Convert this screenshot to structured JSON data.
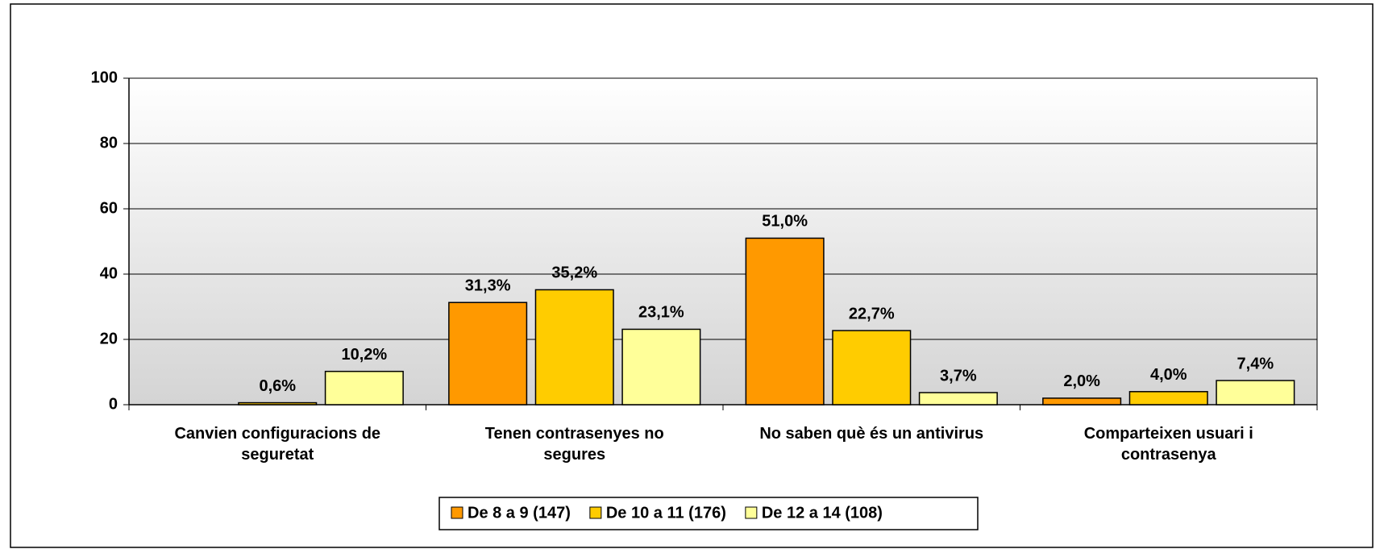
{
  "chart_data": {
    "type": "bar",
    "categories": [
      "Canvien configuracions de seguretat",
      "Tenen contrasenyes no segures",
      "No saben què és un antivirus",
      "Comparteixen usuari i contrasenya"
    ],
    "series": [
      {
        "name": "De 8 a 9 (147)",
        "color": "#ff9900",
        "values": [
          null,
          31.3,
          51.0,
          2.0
        ],
        "value_labels": [
          null,
          "31,3%",
          "51,0%",
          "2,0%"
        ]
      },
      {
        "name": "De 10 a 11 (176)",
        "color": "#ffcc00",
        "values": [
          0.6,
          35.2,
          22.7,
          4.0
        ],
        "value_labels": [
          "0,6%",
          "35,2%",
          "22,7%",
          "4,0%"
        ]
      },
      {
        "name": "De 12 a 14 (108)",
        "color": "#ffff99",
        "values": [
          10.2,
          23.1,
          3.7,
          7.4
        ],
        "value_labels": [
          "10,2%",
          "23,1%",
          "3,7%",
          "7,4%"
        ]
      }
    ],
    "ylim": [
      0,
      100
    ],
    "yticks": [
      0,
      20,
      40,
      60,
      80,
      100
    ],
    "grid": true,
    "legend": "bottom"
  }
}
